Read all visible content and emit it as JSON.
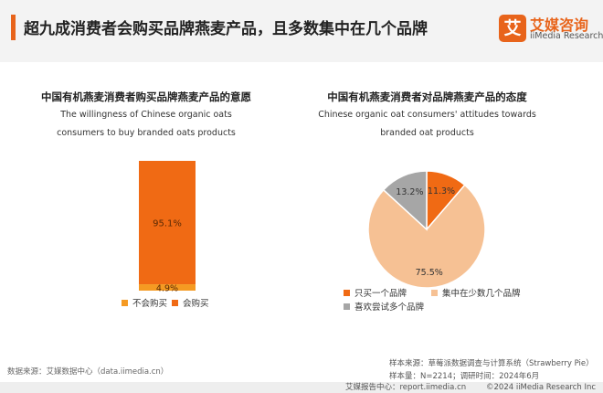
{
  "header": {
    "title": "超九成消费者会购买品牌燕麦产品，且多数集中在几个品牌",
    "logo_mark": "艾",
    "logo_cn": "艾媒咨询",
    "logo_en": "iiMedia Research",
    "accent": "#e8641b"
  },
  "left_chart": {
    "title_cn": "中国有机燕麦消费者购买品牌燕麦产品的意愿",
    "title_en": "The willingness of Chinese organic oats consumers to buy branded oats products"
  },
  "right_chart": {
    "title_cn": "中国有机燕麦消费者对品牌燕麦产品的态度",
    "title_en": "Chinese organic oat consumers' attitudes towards branded oat products"
  },
  "chart_data": [
    {
      "type": "bar",
      "stacked": true,
      "title": "中国有机燕麦消费者购买品牌燕麦产品的意愿",
      "subtitle": "The willingness of Chinese organic oats consumers to buy branded oats products",
      "unit": "%",
      "series": [
        {
          "name": "会购买",
          "value": 95.1,
          "label": "95.1%",
          "color": "#f06a14"
        },
        {
          "name": "不会购买",
          "value": 4.9,
          "label": "4.9%",
          "color": "#f59a22"
        }
      ],
      "legend": [
        {
          "name": "不会购买",
          "color": "#f59a22"
        },
        {
          "name": "会购买",
          "color": "#f06a14"
        }
      ],
      "legend_position": "bottom"
    },
    {
      "type": "pie",
      "title": "中国有机燕麦消费者对品牌燕麦产品的态度",
      "subtitle": "Chinese organic oat consumers' attitudes towards branded oat products",
      "unit": "%",
      "slices": [
        {
          "name": "只买一个品牌",
          "value": 11.3,
          "label": "11.3%",
          "color": "#f06a14"
        },
        {
          "name": "集中在少数几个品牌",
          "value": 75.5,
          "label": "75.5%",
          "color": "#f6c194"
        },
        {
          "name": "喜欢尝试多个品牌",
          "value": 13.2,
          "label": "13.2%",
          "color": "#a6a6a6"
        }
      ],
      "legend_position": "bottom"
    }
  ],
  "footer": {
    "data_source": "数据来源：艾媒数据中心（data.iimedia.cn）",
    "sample_source": "样本来源：草莓派数据调查与计算系统（Strawberry Pie）",
    "sample_size": "样本量：N=2214；调研时间：2024年6月",
    "report_center": "艾媒报告中心：report.iimedia.cn",
    "copyright": "©2024  iiMedia Research Inc"
  }
}
